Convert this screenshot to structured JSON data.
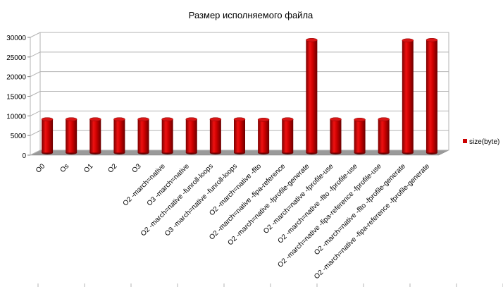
{
  "chart_data": {
    "type": "bar",
    "title": "Размер исполняемого файла",
    "xlabel": "",
    "ylabel": "",
    "ylim": [
      0,
      30000
    ],
    "y_ticks": [
      0,
      5000,
      10000,
      15000,
      20000,
      25000,
      30000
    ],
    "grid": true,
    "legend_position": "right",
    "categories": [
      "O0",
      "Os",
      "O1",
      "O2",
      "O3",
      "O2 -march=native",
      "O3 -march=native",
      "O2 -march=native -funroll-loops",
      "O3 -march=native -funroll-loops",
      "O2 -march=native -flto",
      "O2 -march=native -fipa-reference",
      "O2 -march=native -fprofile-generate",
      "O2 -march=native -fprofile-use",
      "O2 -march=native -flto -fprofile-use",
      "O2 -march=native -fipa-reference -fprofile-use",
      "O2 -march=native -flto -fprofile-generate",
      "O2 -march=native -fipa-reference -fprofile-generate"
    ],
    "series": [
      {
        "name": "size(byte)",
        "color": "#cc0000",
        "values": [
          8500,
          8500,
          8500,
          8500,
          8500,
          8500,
          8500,
          8500,
          8500,
          8400,
          8500,
          28700,
          8500,
          8400,
          8500,
          28600,
          28700
        ]
      }
    ]
  }
}
